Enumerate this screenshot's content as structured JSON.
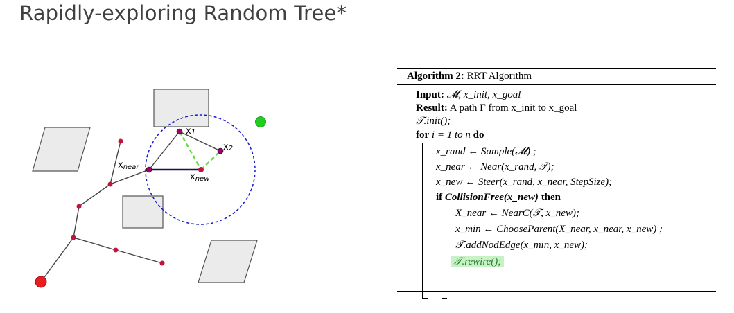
{
  "title": "Rapidly-exploring Random Tree*",
  "diagram": {
    "labels": {
      "x_near_main": "x",
      "x_near_sub": "near",
      "x_new_main": "x",
      "x_new_sub": "new",
      "x1": "x",
      "x1_sub": "1",
      "x2": "x",
      "x2_sub": "2"
    },
    "colors": {
      "obstacle_fill": "#ebebeb",
      "obstacle_stroke": "#555555",
      "node": "#c0143c",
      "root": "#e61e1e",
      "goal": "#22cc22",
      "radius_circle": "#1a1acc",
      "rewire_dash": "#66dd44",
      "edge": "#444444",
      "near_new_edge": "#141450",
      "candidate_node": "#a0006e"
    }
  },
  "algorithm": {
    "header_bold": "Algorithm 2:",
    "header_text": "RRT Algorithm",
    "lines": [
      {
        "bold": "Input:",
        "text": "𝓜, x_init, x_goal"
      },
      {
        "bold": "Result:",
        "text": "A path Γ from x_init to x_goal"
      },
      {
        "bold": "",
        "text": "𝒯.init();"
      },
      {
        "bold": "for",
        "text": "i = 1 to n",
        "bold2": "do"
      },
      {
        "bold": "",
        "text": "x_rand ← Sample(𝓜) ;"
      },
      {
        "bold": "",
        "text": "x_near ← Near(x_rand, 𝒯);"
      },
      {
        "bold": "",
        "text": "x_new ← Steer(x_rand, x_near, StepSize);"
      },
      {
        "bold": "if",
        "text": "CollisionFree(x_new)",
        "bold2": "then"
      },
      {
        "bold": "",
        "text": "X_near ← NearC(𝒯, x_new);"
      },
      {
        "bold": "",
        "text": "x_min ← ChooseParent(X_near, x_near, x_new) ;"
      },
      {
        "bold": "",
        "text": "𝒯.addNodEdge(x_min, x_new);"
      },
      {
        "bold": "",
        "text": "𝒯.rewire();"
      }
    ]
  }
}
